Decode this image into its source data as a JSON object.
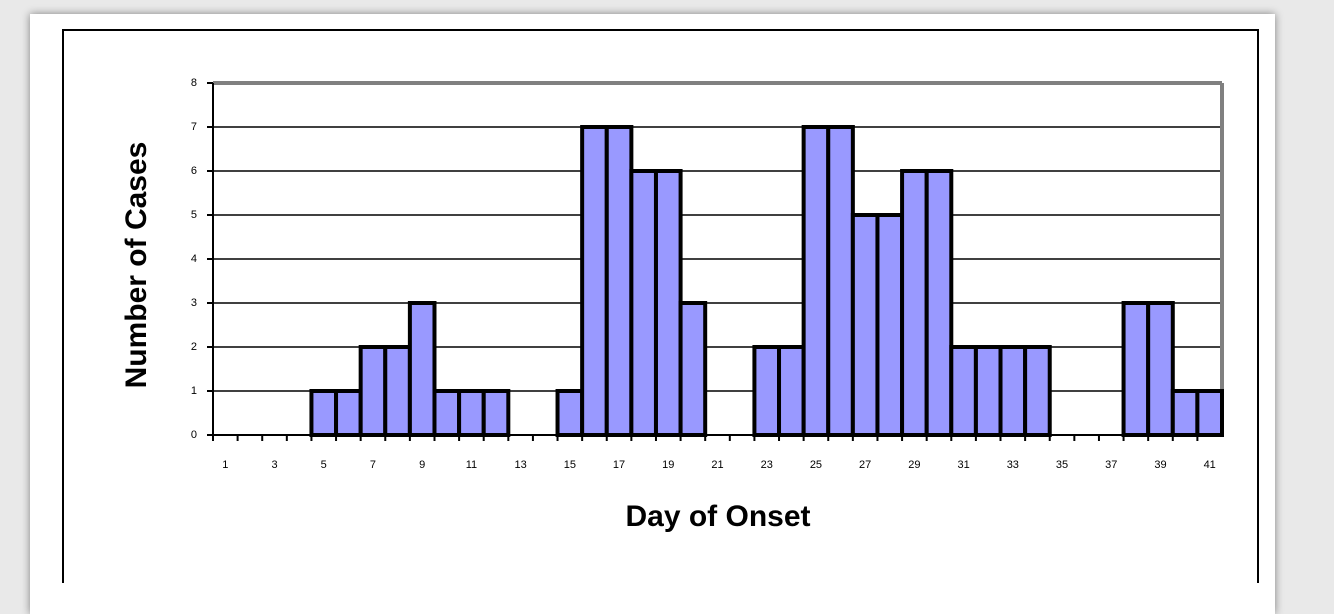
{
  "chart_data": {
    "type": "bar",
    "categories": [
      "1",
      null,
      "3",
      null,
      "5",
      null,
      "7",
      null,
      "9",
      null,
      "11",
      null,
      "13",
      null,
      "15",
      null,
      "17",
      null,
      "19",
      null,
      "21",
      null,
      "23",
      null,
      "25",
      null,
      "27",
      null,
      "29",
      null,
      "31",
      null,
      "33",
      null,
      "35",
      null,
      "37",
      null,
      "39",
      null,
      "41"
    ],
    "values": [
      0,
      0,
      0,
      0,
      1,
      1,
      2,
      2,
      3,
      1,
      1,
      1,
      0,
      0,
      1,
      7,
      7,
      6,
      6,
      3,
      0,
      0,
      2,
      2,
      7,
      7,
      5,
      5,
      6,
      6,
      2,
      2,
      2,
      2,
      0,
      0,
      0,
      3,
      3,
      1,
      1
    ],
    "color": "#9999ff",
    "ylim": [
      0,
      8
    ],
    "yticks": [
      0,
      1,
      2,
      3,
      4,
      5,
      6,
      7,
      8
    ],
    "grid": true,
    "x_label": "Day of Onset",
    "y_label": "Number of Cases"
  }
}
